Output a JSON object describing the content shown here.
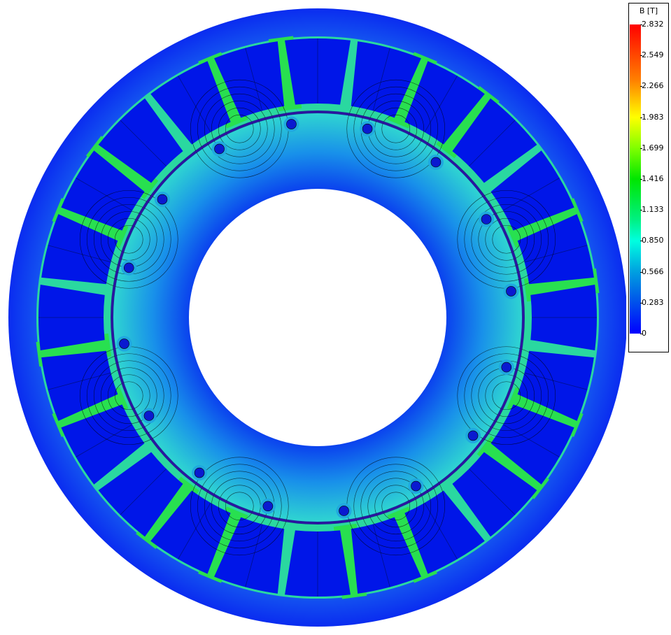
{
  "legend": {
    "title": "B [T]",
    "ticks": [
      "2.832",
      "2.549",
      "2.266",
      "1.983",
      "1.699",
      "1.416",
      "1.133",
      "0.850",
      "0.566",
      "0.283",
      "0"
    ],
    "range": [
      0,
      2.832
    ],
    "colormap": [
      "#0000ff",
      "#00a0e0",
      "#00ffe0",
      "#00e600",
      "#ffff00",
      "#ff0000"
    ]
  },
  "model": {
    "stator_slots": 24,
    "rotor_bolts": 16,
    "colors": {
      "low_field": "#0a2cf0",
      "slot": "#0016e8",
      "tooth": "#28e050",
      "rotor": "#1c9ce8",
      "flux_line": "#000000"
    }
  }
}
